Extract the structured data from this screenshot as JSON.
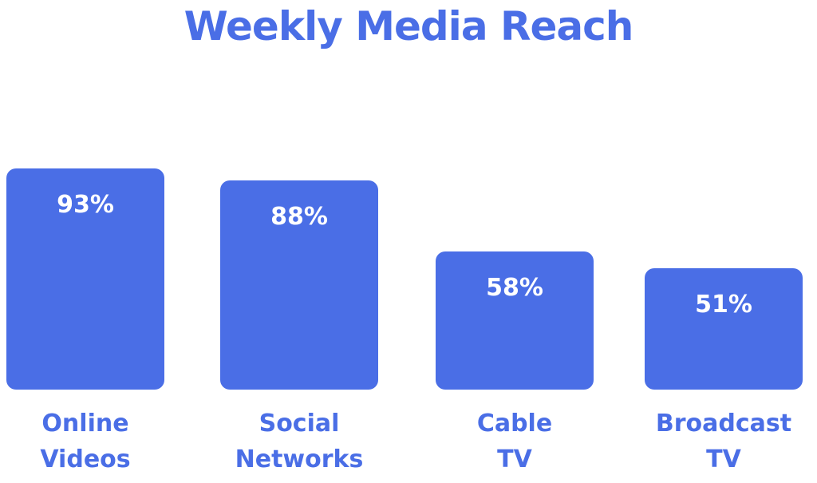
{
  "chart_data": {
    "type": "bar",
    "title": "Weekly Media Reach",
    "categories": [
      "Online Videos",
      "Social Networks",
      "Cable TV",
      "Broadcast TV"
    ],
    "values": [
      93,
      88,
      58,
      51
    ],
    "value_labels": [
      "93%",
      "88%",
      "58%",
      "51%"
    ],
    "color": "#4a6ee6"
  }
}
